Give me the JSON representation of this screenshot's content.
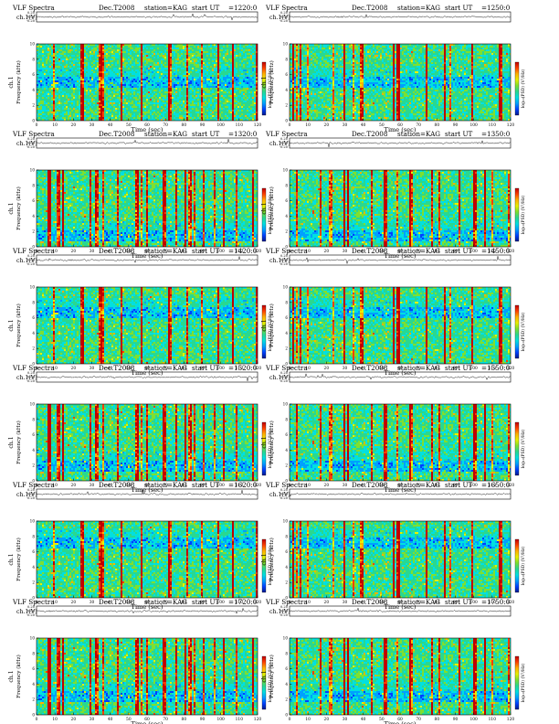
{
  "panel_defaults": {
    "title": "VLF Spectra",
    "date": "Dec.T2008",
    "station": "station=KAG",
    "start_prefix": "start  UT",
    "waveform_ylabel": "ch.1(V)",
    "waveform_ticks": [
      "0.20",
      "0.00",
      "-0.20"
    ],
    "spectrogram_ylabel_a": "ch.1",
    "spectrogram_ylabel_b": "Frequency (kHz)",
    "freq_ticks": [
      "10",
      "8",
      "6",
      "4",
      "2",
      "0"
    ],
    "time_ticks": [
      "0",
      "10",
      "20",
      "30",
      "40",
      "50",
      "60",
      "70",
      "80",
      "90",
      "100",
      "110",
      "120"
    ],
    "xlabel": "Time  (sec)",
    "colorbar_label": "log₁₀(PSD) (V²/Hz)"
  },
  "colors": {
    "colormap": [
      "#001a8c",
      "#0040ff",
      "#00a0ff",
      "#00e0e0",
      "#29d890",
      "#7ee030",
      "#e8f000",
      "#ffb000",
      "#ff4000",
      "#c00000"
    ],
    "background": "#ffffff"
  },
  "chart_data": [
    {
      "type": "heatmap",
      "start": "=1220:0",
      "xlim": [
        0,
        120
      ],
      "ylim_khz": [
        0,
        10
      ]
    },
    {
      "type": "heatmap",
      "start": "=1250:0",
      "xlim": [
        0,
        120
      ],
      "ylim_khz": [
        0,
        10
      ]
    },
    {
      "type": "heatmap",
      "start": "=1320:0",
      "xlim": [
        0,
        120
      ],
      "ylim_khz": [
        0,
        10
      ]
    },
    {
      "type": "heatmap",
      "start": "=1350:0",
      "xlim": [
        0,
        120
      ],
      "ylim_khz": [
        0,
        10
      ]
    },
    {
      "type": "heatmap",
      "start": "=1420:0",
      "xlim": [
        0,
        120
      ],
      "ylim_khz": [
        0,
        10
      ]
    },
    {
      "type": "heatmap",
      "start": "=1450:0",
      "xlim": [
        0,
        120
      ],
      "ylim_khz": [
        0,
        10
      ]
    },
    {
      "type": "heatmap",
      "start": "=1520:0",
      "xlim": [
        0,
        120
      ],
      "ylim_khz": [
        0,
        10
      ]
    },
    {
      "type": "heatmap",
      "start": "=1550:0",
      "xlim": [
        0,
        120
      ],
      "ylim_khz": [
        0,
        10
      ]
    },
    {
      "type": "heatmap",
      "start": "=1620:0",
      "xlim": [
        0,
        120
      ],
      "ylim_khz": [
        0,
        10
      ]
    },
    {
      "type": "heatmap",
      "start": "=1650:0",
      "xlim": [
        0,
        120
      ],
      "ylim_khz": [
        0,
        10
      ]
    },
    {
      "type": "heatmap",
      "start": "=1720:0",
      "xlim": [
        0,
        120
      ],
      "ylim_khz": [
        0,
        10
      ]
    },
    {
      "type": "heatmap",
      "start": "=1750:0",
      "xlim": [
        0,
        120
      ],
      "ylim_khz": [
        0,
        10
      ]
    }
  ]
}
